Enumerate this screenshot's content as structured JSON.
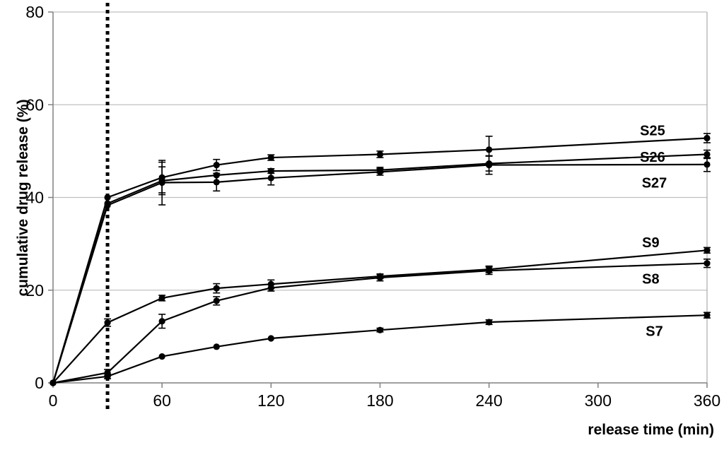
{
  "chart_data": {
    "type": "line",
    "title": "",
    "xlabel": "release time (min)",
    "ylabel": "cumulative drug release (%)",
    "x": [
      0,
      30,
      60,
      90,
      120,
      180,
      240,
      360
    ],
    "xlim": [
      0,
      360
    ],
    "ylim": [
      0,
      80
    ],
    "x_ticks": [
      0,
      60,
      120,
      180,
      240,
      300,
      360
    ],
    "y_ticks": [
      0,
      20,
      40,
      60,
      80
    ],
    "grid": "horizontal",
    "legend_position": "inline-labels-right",
    "reference_line": {
      "axis": "x",
      "value": 30,
      "style": "dotted"
    },
    "series": [
      {
        "name": "S25",
        "values": [
          0,
          40.0,
          44.3,
          47.0,
          48.6,
          49.3,
          50.3,
          52.8
        ],
        "errors": [
          0,
          0,
          3.3,
          1.2,
          0.6,
          0.7,
          2.9,
          1.0
        ],
        "label": "S25",
        "label_x": 330,
        "label_y": 54.5
      },
      {
        "name": "S26",
        "values": [
          0,
          38.7,
          43.6,
          44.8,
          45.7,
          45.9,
          47.3,
          49.3
        ],
        "errors": [
          0,
          0,
          3.0,
          0,
          0.5,
          0.6,
          1.6,
          0.9
        ],
        "label": "S26",
        "label_x": 330,
        "label_y": 48.8
      },
      {
        "name": "S27",
        "values": [
          0,
          38.3,
          43.2,
          43.3,
          44.2,
          45.5,
          47.0,
          47.1
        ],
        "errors": [
          0,
          0,
          4.8,
          1.9,
          1.5,
          0.7,
          2.0,
          1.5
        ],
        "label": "S27",
        "label_x": 331,
        "label_y": 43.2
      },
      {
        "name": "S9",
        "values": [
          0,
          13.0,
          18.3,
          20.4,
          21.3,
          23.0,
          24.5,
          28.6
        ],
        "errors": [
          0,
          0.8,
          0.6,
          1.0,
          0.9,
          0.5,
          0.7,
          0.6
        ],
        "label": "S9",
        "label_x": 329,
        "label_y": 30.3
      },
      {
        "name": "S8",
        "values": [
          0,
          2.2,
          13.3,
          17.7,
          20.5,
          22.7,
          24.2,
          25.8
        ],
        "errors": [
          0,
          0.7,
          1.5,
          0.9,
          0.7,
          0.7,
          0.8,
          0.9
        ],
        "label": "S8",
        "label_x": 329,
        "label_y": 22.5
      },
      {
        "name": "S7",
        "values": [
          0,
          1.4,
          5.7,
          7.8,
          9.6,
          11.4,
          13.1,
          14.6
        ],
        "errors": [
          0,
          0.5,
          0,
          0,
          0,
          0.4,
          0.5,
          0.6
        ],
        "label": "S7",
        "label_x": 331,
        "label_y": 11.2
      }
    ]
  },
  "colors": {
    "series_line": "#000000",
    "marker": "#000000",
    "gridline": "#c0c0c0",
    "axis": "#808080",
    "right_spine": "#b0b0b0",
    "reference_line": "#000000",
    "background": "#ffffff",
    "text": "#000000"
  }
}
